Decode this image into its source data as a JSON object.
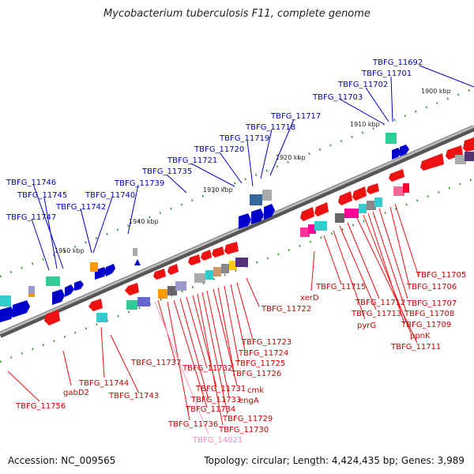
{
  "title": "Mycobacterium tuberculosis F11, complete genome",
  "footer": {
    "accession": "Accession: NC_009565",
    "info": "Topology: circular; Length: 4,424,435 bp; Genes: 3,989"
  },
  "colors": {
    "forward": "#0000cc",
    "reverse": "#cc0000",
    "pseudo": "#ff99cc",
    "backbone": "#8a8a8a"
  },
  "ticks": [
    "1900 kbp",
    "1910 kbp",
    "1920 kbp",
    "1930 kbp",
    "1940 kbp",
    "1950 kbp"
  ],
  "top_labels": [
    "TBFG_11692",
    "TBFG_11701",
    "TBFG_11702",
    "TBFG_11703",
    "TBFG_11717",
    "TBFG_11718",
    "TBFG_11719",
    "TBFG_11720",
    "TBFG_11721",
    "TBFG_11735",
    "TBFG_11739",
    "TBFG_11740",
    "TBFG_11742",
    "TBFG_11746",
    "TBFG_11745",
    "TBFG_11747"
  ],
  "bottom_labels": [
    "TBFG_11705",
    "TBFG_11706",
    "TBFG_11707",
    "TBFG_11708",
    "TBFG_11709",
    "ppnK",
    "TBFG_11711",
    "TBFG_11712",
    "TBFG_11713",
    "pyrG",
    "TBFG_11715",
    "xerD",
    "TBFG_11722",
    "TBFG_11723",
    "TBFG_11724",
    "TBFG_11725",
    "TBFG_11726",
    "cmk",
    "engA",
    "TBFG_11729",
    "TBFG_11730",
    "TBFG_11731",
    "TBFG_11732",
    "TBFG_11733",
    "TBFG_11734",
    "TBFG_11736",
    "TBFG_14021",
    "TBFG_11737",
    "TBFG_11743",
    "TBFG_11744",
    "gabD2",
    "TBFG_11756"
  ],
  "pseudo_label": "TBFG_14021"
}
